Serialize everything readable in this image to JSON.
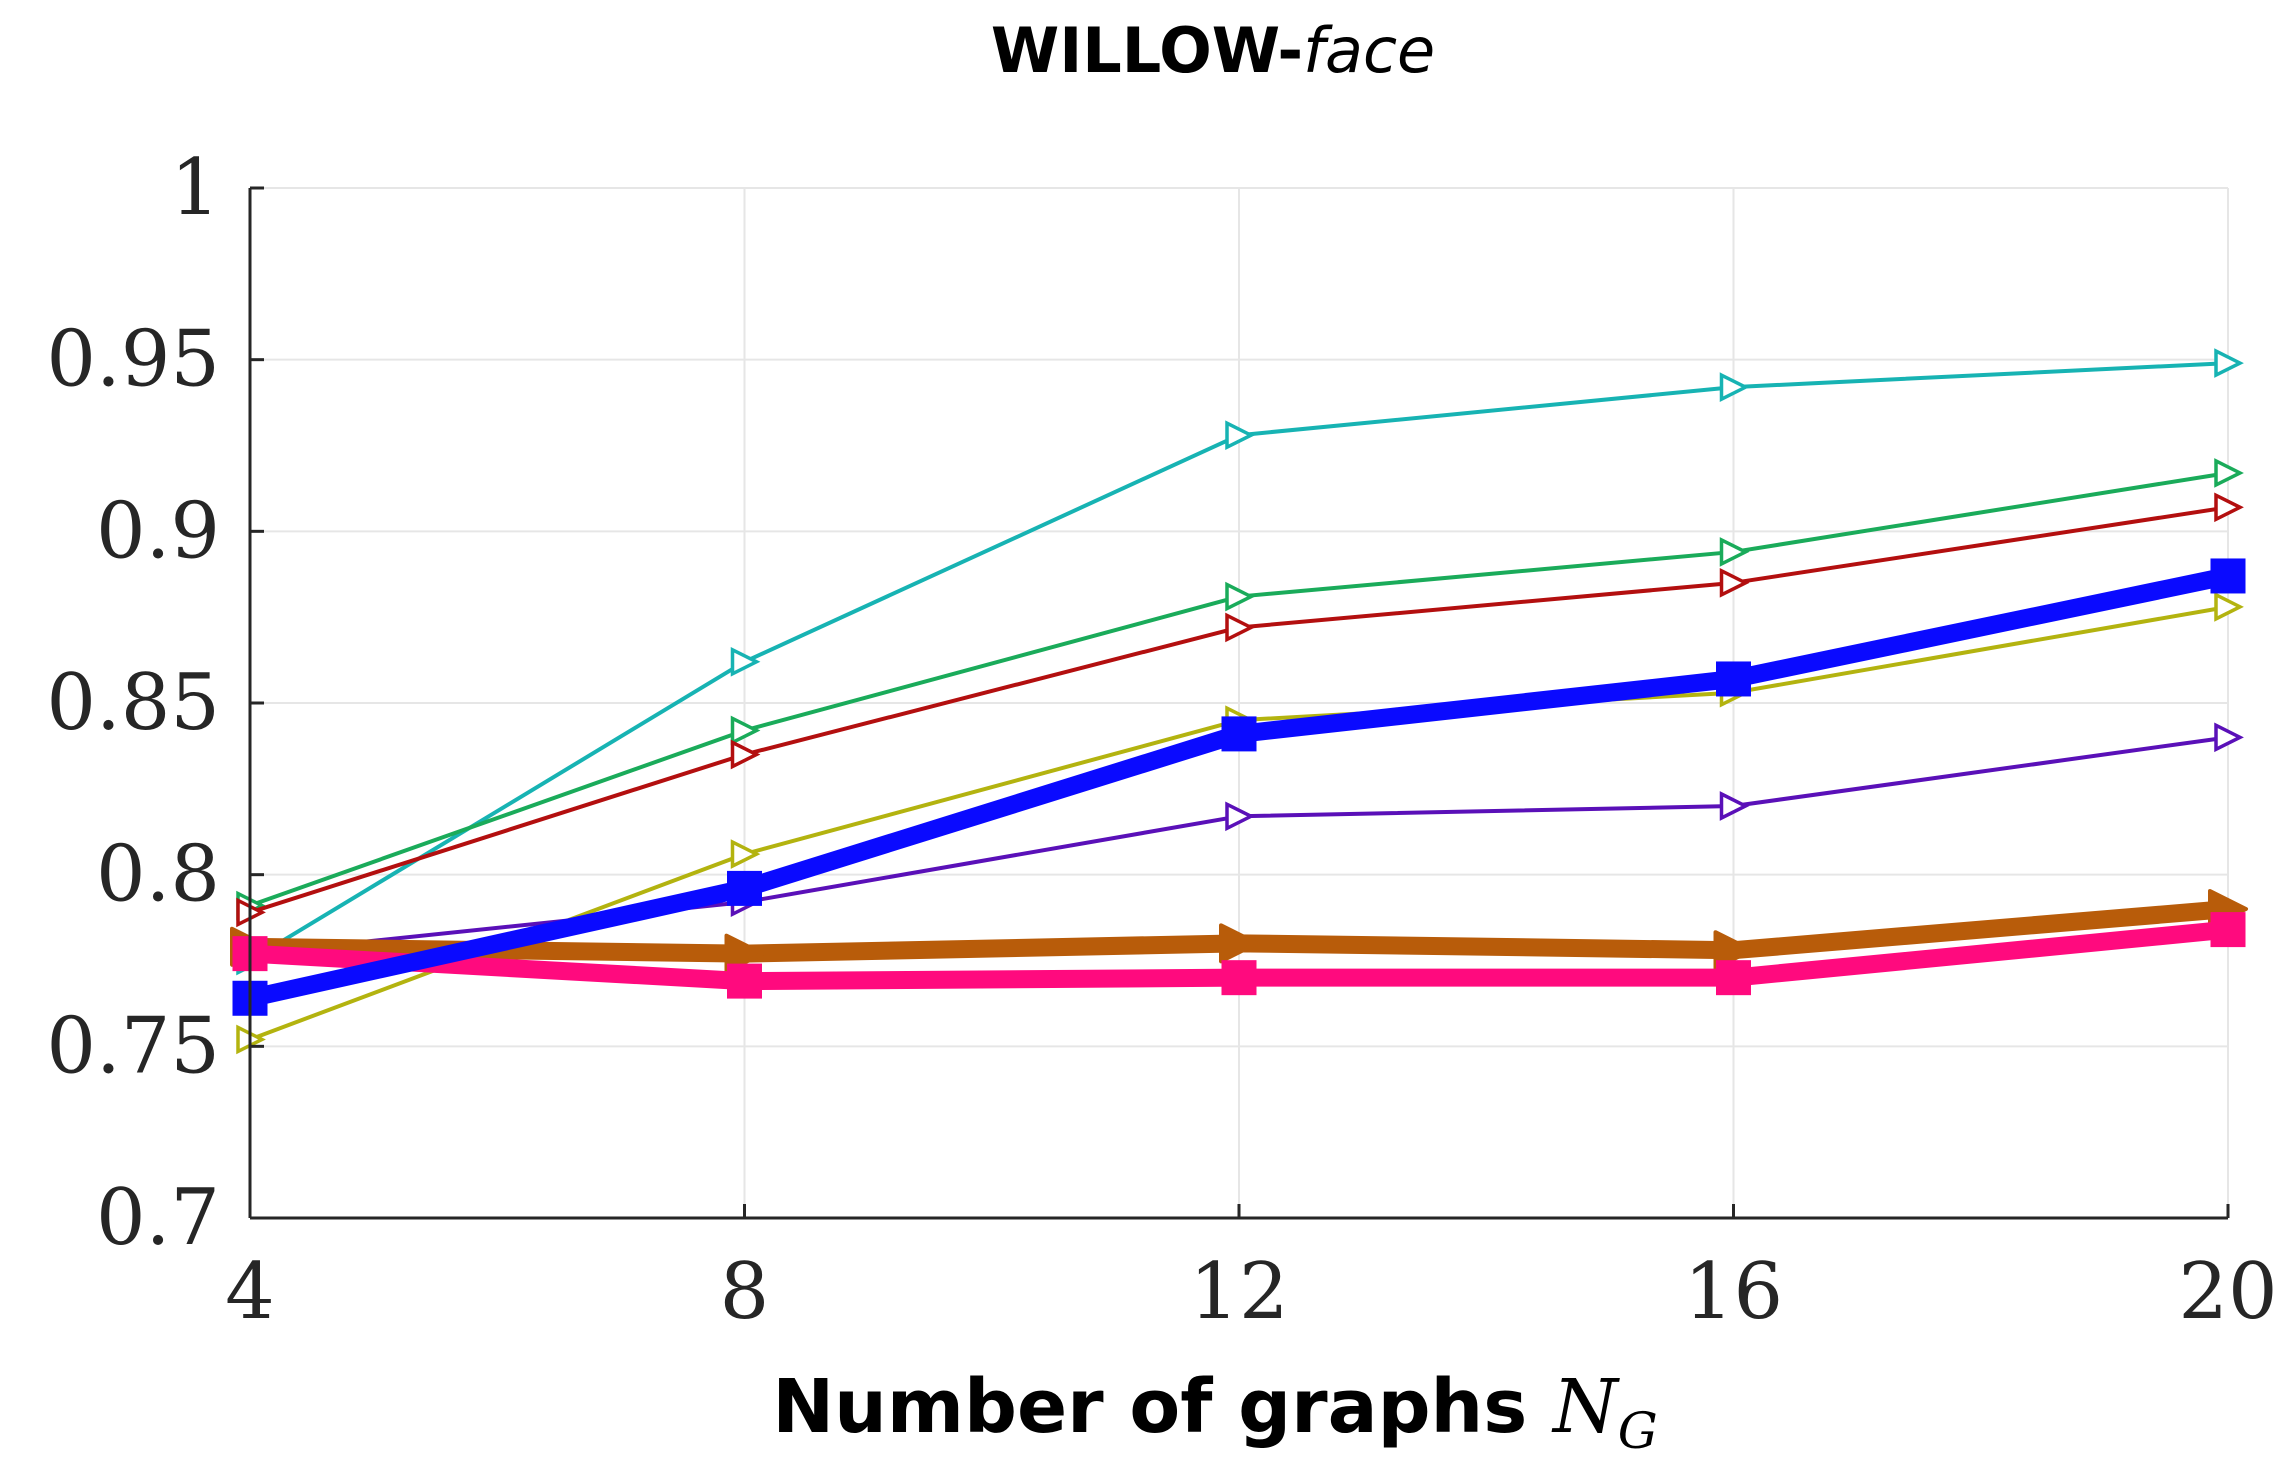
{
  "chart_data": {
    "type": "line",
    "title": {
      "main": "WILLOW-",
      "italic": "face"
    },
    "xlabel": {
      "main": "Number of graphs ",
      "symbol": "N",
      "subscript": "G"
    },
    "ylabel": "",
    "x": [
      4,
      8,
      12,
      16,
      20
    ],
    "xticks": [
      "4",
      "8",
      "12",
      "16",
      "20"
    ],
    "yticks": [
      "0.7",
      "0.75",
      "0.8",
      "0.85",
      "0.9",
      "0.95",
      "1"
    ],
    "xlim": [
      4,
      20
    ],
    "ylim": [
      0.7,
      1.0
    ],
    "grid": true,
    "series": [
      {
        "name": "series-cyan",
        "color": "#17b3b3",
        "marker": "open-triangle-right",
        "weight": "thin",
        "values": [
          0.775,
          0.862,
          0.928,
          0.942,
          0.949
        ]
      },
      {
        "name": "series-green",
        "color": "#1aab5a",
        "marker": "open-triangle-right",
        "weight": "thin",
        "values": [
          0.791,
          0.842,
          0.881,
          0.894,
          0.917
        ]
      },
      {
        "name": "series-darkred",
        "color": "#b30f0f",
        "marker": "open-triangle-right",
        "weight": "thin",
        "values": [
          0.789,
          0.835,
          0.872,
          0.885,
          0.907
        ]
      },
      {
        "name": "series-olive",
        "color": "#b3b30f",
        "marker": "open-triangle-right",
        "weight": "thin",
        "values": [
          0.752,
          0.806,
          0.845,
          0.853,
          0.878
        ]
      },
      {
        "name": "series-purple",
        "color": "#5a10b8",
        "marker": "open-triangle-right",
        "weight": "thin",
        "values": [
          0.777,
          0.792,
          0.817,
          0.82,
          0.84
        ]
      },
      {
        "name": "series-orange",
        "color": "#b85c0a",
        "marker": "filled-triangle-right",
        "weight": "thick",
        "values": [
          0.779,
          0.777,
          0.78,
          0.778,
          0.79
        ]
      },
      {
        "name": "series-magenta",
        "color": "#ff0a7e",
        "marker": "filled-square",
        "weight": "thick",
        "values": [
          0.777,
          0.769,
          0.77,
          0.77,
          0.784
        ]
      },
      {
        "name": "series-blue",
        "color": "#0a0aff",
        "marker": "filled-square",
        "weight": "thick",
        "values": [
          0.764,
          0.796,
          0.841,
          0.857,
          0.887
        ]
      }
    ]
  }
}
